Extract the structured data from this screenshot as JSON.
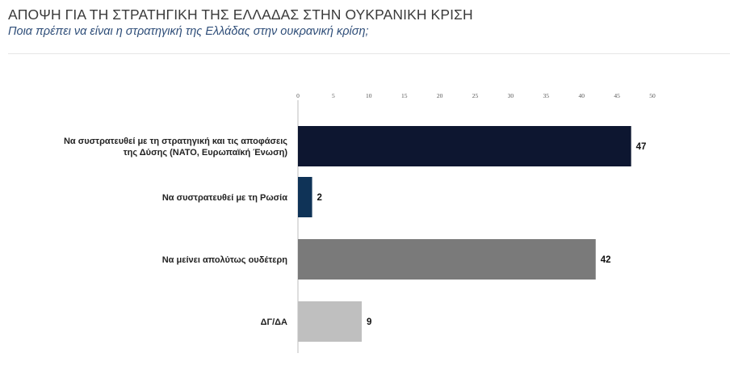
{
  "header": {
    "title": "ΑΠΟΨΗ ΓΙΑ ΤΗ ΣΤΡΑΤΗΓΙΚΗ ΤΗΣ ΕΛΛΑΔΑΣ ΣΤΗΝ ΟΥΚΡΑΝΙΚΗ ΚΡΙΣΗ",
    "subtitle": "Ποια πρέπει να είναι η στρατηγική της Ελλάδας στην ουκρανική κρίση;"
  },
  "chart_data": {
    "type": "bar",
    "orientation": "horizontal",
    "title": "ΑΠΟΨΗ ΓΙΑ ΤΗ ΣΤΡΑΤΗΓΙΚΗ ΤΗΣ ΕΛΛΑΔΑΣ ΣΤΗΝ ΟΥΚΡΑΝΙΚΗ ΚΡΙΣΗ",
    "subtitle": "Ποια πρέπει να είναι η στρατηγική της Ελλάδας στην ουκρανική κρίση;",
    "categories": [
      [
        "Να συστρατευθεί με τη στρατηγική και τις αποφάσεις",
        "της Δύσης (ΝΑΤΟ, Ευρωπαϊκή Ένωση)"
      ],
      [
        "Να συστρατευθεί με τη Ρωσία"
      ],
      [
        "Να μείνει απολύτως ουδέτερη"
      ],
      [
        "ΔΓ/ΔΑ"
      ]
    ],
    "values": [
      47,
      2,
      42,
      9
    ],
    "value_labels": [
      "47",
      "2",
      "42",
      "9"
    ],
    "colors": [
      "#0d1630",
      "#0f3357",
      "#7a7a7a",
      "#bfbfbf"
    ],
    "xlim": [
      0,
      50
    ],
    "xticks": [
      0,
      5,
      10,
      15,
      20,
      25,
      30,
      35,
      40,
      45,
      50
    ],
    "xtick_labels": [
      "0",
      "5",
      "10",
      "15",
      "20",
      "25",
      "30",
      "35",
      "40",
      "45",
      "50"
    ],
    "xaxis_position": "top",
    "grid": false,
    "legend": "none"
  }
}
